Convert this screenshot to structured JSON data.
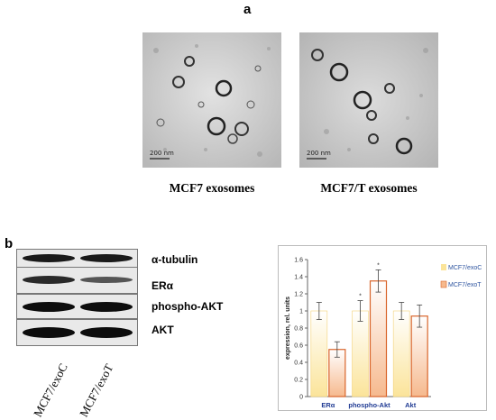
{
  "panel_a": {
    "label": "a",
    "images": [
      {
        "caption": "MCF7 exosomes",
        "scale_bar": "200 nm"
      },
      {
        "caption": "MCF7/T exosomes",
        "scale_bar": "200 nm"
      }
    ]
  },
  "panel_b": {
    "label": "b",
    "blot_rows": [
      "α-tubulin",
      "ERα",
      "phospho-AKT",
      "AKT"
    ],
    "lanes": [
      "MCF7/exoC",
      "MCF7/exoT"
    ]
  },
  "chart_data": {
    "type": "bar",
    "title": "",
    "xlabel": "",
    "ylabel": "expression, rel. units",
    "ylim": [
      0,
      1.6
    ],
    "yticks": [
      "0",
      "0.2",
      "0.4",
      "0.6",
      "0.8",
      "1",
      "1.2",
      "1.4",
      "1.6"
    ],
    "categories": [
      "ERα",
      "phospho-Akt",
      "Akt"
    ],
    "series": [
      {
        "name": "MCF7/exoC",
        "values": [
          1.0,
          1.0,
          1.0
        ],
        "errors": [
          0.1,
          0.12,
          0.1
        ],
        "color": "#fbe49a"
      },
      {
        "name": "MCF7/exoT",
        "values": [
          0.55,
          1.35,
          0.94
        ],
        "errors": [
          0.09,
          0.13,
          0.13
        ],
        "color": "#f6b98e"
      }
    ],
    "significance": [
      "",
      "",
      "*",
      "*",
      "",
      ""
    ],
    "grid": false,
    "legend": "right"
  }
}
